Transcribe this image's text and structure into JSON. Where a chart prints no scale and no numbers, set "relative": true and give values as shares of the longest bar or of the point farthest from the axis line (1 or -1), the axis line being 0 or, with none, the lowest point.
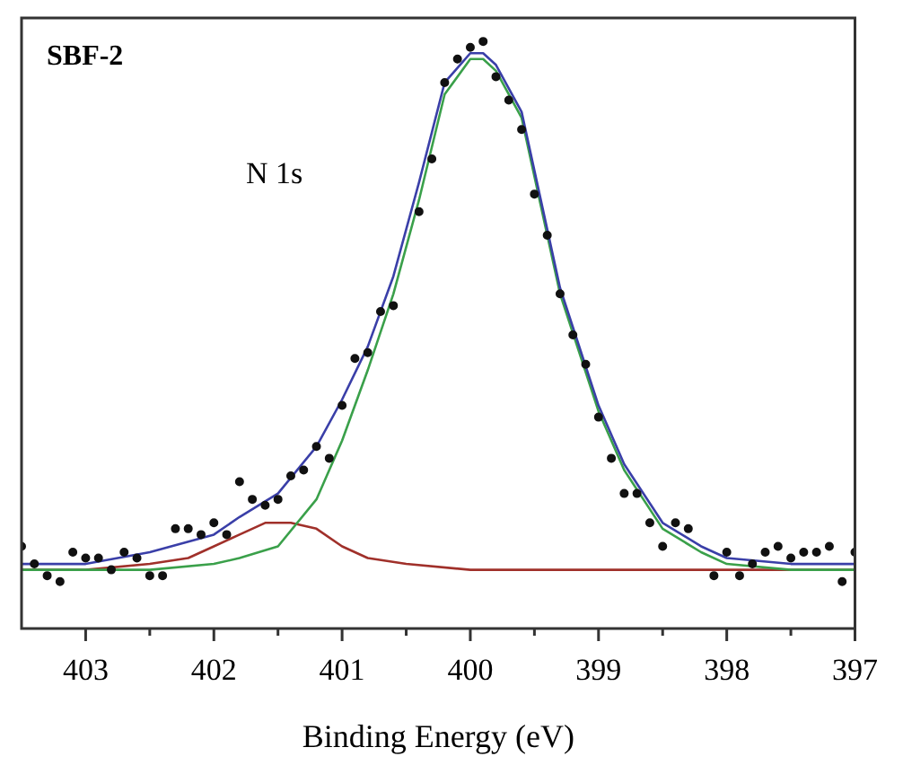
{
  "chart_data": {
    "type": "line",
    "title": "SBF-2",
    "xlabel": "Binding Energy (eV)",
    "annotations": [
      "N 1s"
    ],
    "relative": true,
    "xlim": [
      403.5,
      397
    ],
    "xticks": [
      403,
      {
        "value": 402.5,
        "label": null
      },
      402,
      {
        "value": 401.5,
        "label": null
      },
      401,
      {
        "value": 400.5,
        "label": null
      },
      400,
      {
        "value": 399.5,
        "label": null
      },
      399,
      {
        "value": 398.5,
        "label": null
      },
      398,
      {
        "value": 397.5,
        "label": null
      },
      397
    ],
    "tick_labels": "x",
    "grid": false,
    "legend": false,
    "series": [
      {
        "type": "scatter",
        "color": "#111111",
        "marker": "circle",
        "x": [
          403.5,
          403.4,
          403.3,
          403.2,
          403.1,
          403.0,
          402.9,
          402.8,
          402.7,
          402.6,
          402.5,
          402.4,
          402.3,
          402.2,
          402.1,
          402.0,
          401.9,
          401.8,
          401.7,
          401.6,
          401.5,
          401.4,
          401.3,
          401.2,
          401.1,
          401.0,
          400.9,
          400.8,
          400.7,
          400.6,
          400.4,
          400.3,
          400.2,
          400.1,
          400.0,
          399.9,
          399.8,
          399.7,
          399.6,
          399.5,
          399.4,
          399.3,
          399.2,
          399.1,
          399.0,
          398.9,
          398.8,
          398.7,
          398.6,
          398.5,
          398.4,
          398.3,
          398.1,
          398.0,
          397.9,
          397.8,
          397.7,
          397.6,
          397.5,
          397.4,
          397.3,
          397.2,
          397.1,
          397.0
        ],
        "values": [
          0.14,
          0.11,
          0.09,
          0.08,
          0.13,
          0.12,
          0.12,
          0.1,
          0.13,
          0.12,
          0.09,
          0.09,
          0.17,
          0.17,
          0.16,
          0.18,
          0.16,
          0.25,
          0.22,
          0.21,
          0.22,
          0.26,
          0.27,
          0.31,
          0.29,
          0.38,
          0.46,
          0.47,
          0.54,
          0.55,
          0.71,
          0.8,
          0.93,
          0.97,
          0.99,
          1.0,
          0.94,
          0.9,
          0.85,
          0.74,
          0.67,
          0.57,
          0.5,
          0.45,
          0.36,
          0.29,
          0.23,
          0.23,
          0.18,
          0.14,
          0.18,
          0.17,
          0.09,
          0.13,
          0.09,
          0.11,
          0.13,
          0.14,
          0.12,
          0.13,
          0.13,
          0.14,
          0.08,
          0.13
        ]
      },
      {
        "color": "#3a3fa8",
        "marker": "none",
        "x": [
          403.5,
          403,
          402.5,
          402,
          401.8,
          401.5,
          401.2,
          401,
          400.8,
          400.6,
          400.4,
          400.2,
          400.0,
          399.9,
          399.8,
          399.6,
          399.3,
          399.0,
          398.8,
          398.5,
          398.2,
          398,
          397.5,
          397
        ],
        "values": [
          0.11,
          0.11,
          0.13,
          0.16,
          0.19,
          0.23,
          0.31,
          0.39,
          0.48,
          0.6,
          0.76,
          0.93,
          0.98,
          0.98,
          0.96,
          0.88,
          0.58,
          0.38,
          0.28,
          0.18,
          0.14,
          0.12,
          0.11,
          0.11
        ]
      },
      {
        "color": "#3aa04a",
        "marker": "none",
        "x": [
          403.5,
          403,
          402.5,
          402,
          401.8,
          401.5,
          401.2,
          401,
          400.8,
          400.6,
          400.4,
          400.2,
          400.0,
          399.9,
          399.8,
          399.6,
          399.3,
          399.0,
          398.8,
          398.5,
          398.2,
          398,
          397.5,
          397
        ],
        "values": [
          0.1,
          0.1,
          0.1,
          0.11,
          0.12,
          0.14,
          0.22,
          0.32,
          0.44,
          0.57,
          0.73,
          0.91,
          0.97,
          0.97,
          0.95,
          0.87,
          0.57,
          0.37,
          0.27,
          0.17,
          0.13,
          0.11,
          0.1,
          0.1
        ]
      },
      {
        "color": "#a0302a",
        "marker": "none",
        "x": [
          403.5,
          403,
          402.5,
          402.2,
          402,
          401.8,
          401.6,
          401.5,
          401.4,
          401.2,
          401,
          400.8,
          400.5,
          400,
          399,
          397
        ],
        "values": [
          0.1,
          0.1,
          0.11,
          0.12,
          0.14,
          0.16,
          0.18,
          0.18,
          0.18,
          0.17,
          0.14,
          0.12,
          0.11,
          0.1,
          0.1,
          0.1
        ]
      }
    ]
  }
}
